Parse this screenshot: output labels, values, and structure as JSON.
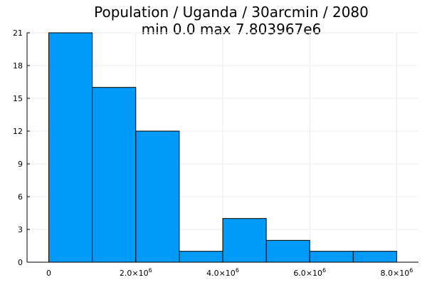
{
  "chart_data": {
    "type": "bar",
    "title": "Population / Uganda / 30arcmin / 2080",
    "subtitle": "min 0.0  max 7.803967e6",
    "xlabel": "",
    "ylabel": "",
    "bins": [
      {
        "x0": 0,
        "x1": 1000000,
        "count": 21
      },
      {
        "x0": 1000000,
        "x1": 2000000,
        "count": 16
      },
      {
        "x0": 2000000,
        "x1": 3000000,
        "count": 12
      },
      {
        "x0": 3000000,
        "x1": 4000000,
        "count": 1
      },
      {
        "x0": 4000000,
        "x1": 5000000,
        "count": 4
      },
      {
        "x0": 5000000,
        "x1": 6000000,
        "count": 2
      },
      {
        "x0": 6000000,
        "x1": 7000000,
        "count": 1
      },
      {
        "x0": 7000000,
        "x1": 8000000,
        "count": 1
      }
    ],
    "xlim": [
      -500000,
      8500000
    ],
    "ylim": [
      0,
      21
    ],
    "x_ticks": [
      {
        "value": 0,
        "label": "0",
        "exp": ""
      },
      {
        "value": 2000000,
        "label": "2.0×10",
        "exp": "6"
      },
      {
        "value": 4000000,
        "label": "4.0×10",
        "exp": "6"
      },
      {
        "value": 6000000,
        "label": "6.0×10",
        "exp": "6"
      },
      {
        "value": 8000000,
        "label": "8.0×10",
        "exp": "6"
      }
    ],
    "y_ticks": [
      {
        "value": 0,
        "label": "0"
      },
      {
        "value": 3,
        "label": "3"
      },
      {
        "value": 6,
        "label": "6"
      },
      {
        "value": 9,
        "label": "9"
      },
      {
        "value": 12,
        "label": "12"
      },
      {
        "value": 15,
        "label": "15"
      },
      {
        "value": 18,
        "label": "18"
      },
      {
        "value": 21,
        "label": "21"
      }
    ],
    "grid": true,
    "legend": "none",
    "colors": {
      "bar_fill": "#009af9",
      "bar_stroke": "#000000",
      "grid": "#ebebeb",
      "axis": "#000000"
    }
  }
}
